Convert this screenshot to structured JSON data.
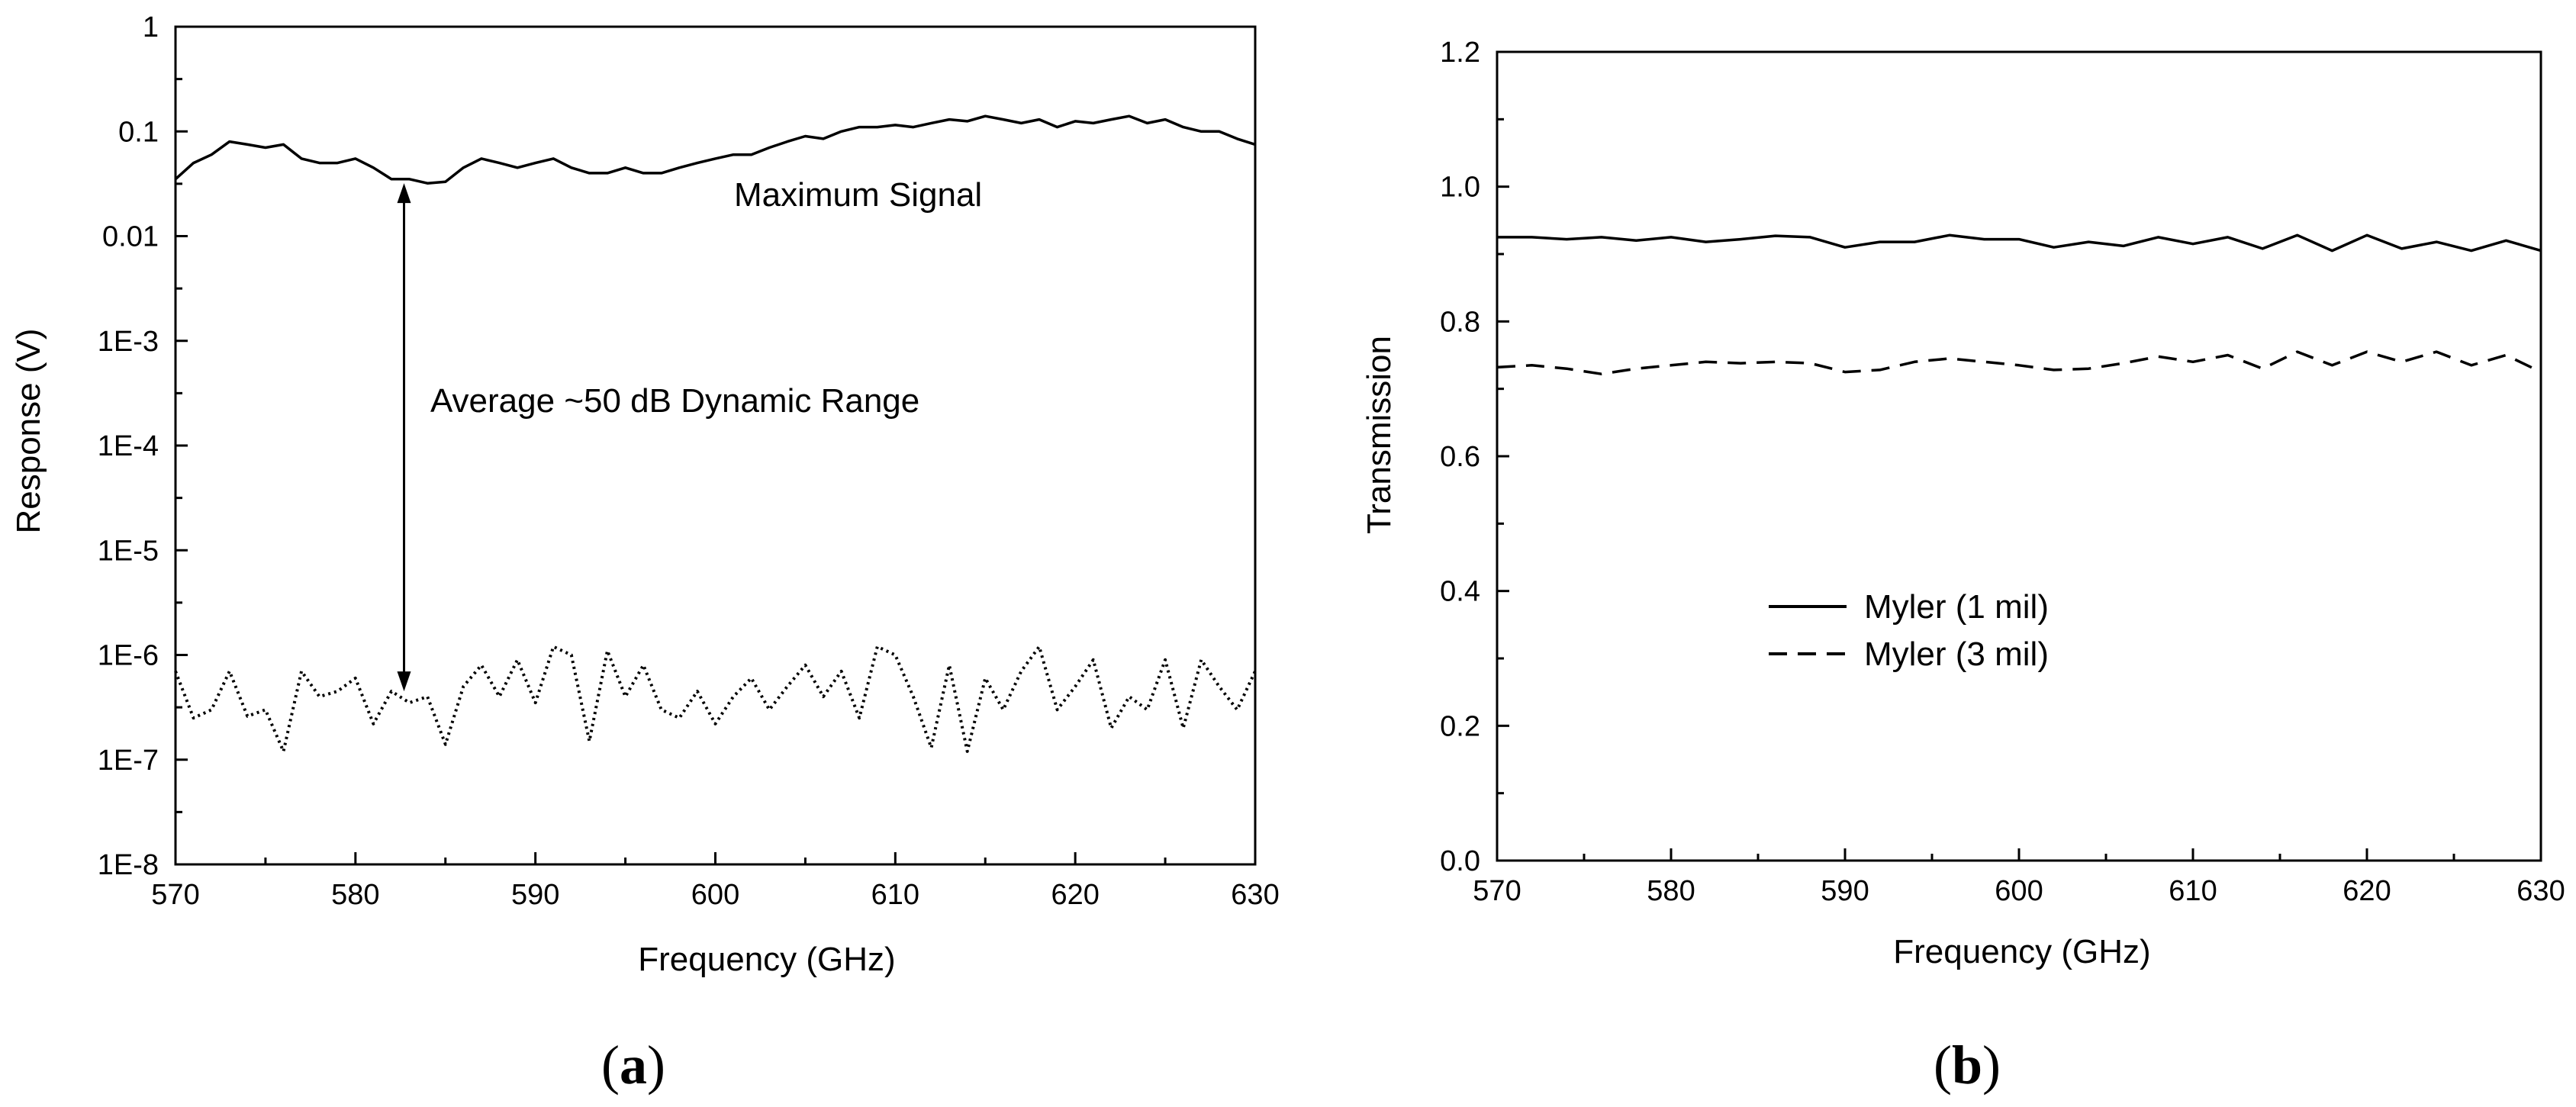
{
  "chart_data": [
    {
      "type": "line",
      "panel_label": "a",
      "xlabel": "Frequency (GHz)",
      "ylabel": "Response (V)",
      "xlim": [
        570,
        630
      ],
      "ylim": [
        1e-08,
        1
      ],
      "yscale": "log",
      "x_ticks": [
        "570",
        "580",
        "590",
        "600",
        "610",
        "620",
        "630"
      ],
      "y_ticks": [
        "1E-8",
        "1E-7",
        "1E-6",
        "1E-5",
        "1E-4",
        "1E-3",
        "0.01",
        "0.1",
        "1"
      ],
      "annotations": [
        "Maximum Signal",
        "Average ~50 dB Dynamic Range"
      ],
      "arrow": {
        "x": 582.7,
        "y_top": 0.032,
        "y_bottom": 4.5e-07
      },
      "series": [
        {
          "style": "solid",
          "x": [
            570,
            571,
            572,
            573,
            574,
            575,
            576,
            577,
            578,
            579,
            580,
            581,
            582,
            583,
            584,
            585,
            586,
            587,
            588,
            589,
            590,
            591,
            592,
            593,
            594,
            595,
            596,
            597,
            598,
            599,
            600,
            601,
            602,
            603,
            604,
            605,
            606,
            607,
            608,
            609,
            610,
            611,
            612,
            613,
            614,
            615,
            616,
            617,
            618,
            619,
            620,
            621,
            622,
            623,
            624,
            625,
            626,
            627,
            628,
            629,
            630
          ],
          "values": [
            0.035,
            0.05,
            0.06,
            0.08,
            0.075,
            0.07,
            0.075,
            0.055,
            0.05,
            0.05,
            0.055,
            0.045,
            0.035,
            0.035,
            0.032,
            0.033,
            0.045,
            0.055,
            0.05,
            0.045,
            0.05,
            0.055,
            0.045,
            0.04,
            0.04,
            0.045,
            0.04,
            0.04,
            0.045,
            0.05,
            0.055,
            0.06,
            0.06,
            0.07,
            0.08,
            0.09,
            0.085,
            0.1,
            0.11,
            0.11,
            0.115,
            0.11,
            0.12,
            0.13,
            0.125,
            0.14,
            0.13,
            0.12,
            0.13,
            0.11,
            0.125,
            0.12,
            0.13,
            0.14,
            0.12,
            0.13,
            0.11,
            0.1,
            0.1,
            0.085,
            0.075
          ]
        },
        {
          "style": "dotted",
          "x": [
            570,
            571,
            572,
            573,
            574,
            575,
            576,
            577,
            578,
            579,
            580,
            581,
            582,
            583,
            584,
            585,
            586,
            587,
            588,
            589,
            590,
            591,
            592,
            593,
            594,
            595,
            596,
            597,
            598,
            599,
            600,
            601,
            602,
            603,
            604,
            605,
            606,
            607,
            608,
            609,
            610,
            611,
            612,
            613,
            614,
            615,
            616,
            617,
            618,
            619,
            620,
            621,
            622,
            623,
            624,
            625,
            626,
            627,
            628,
            629,
            630
          ],
          "values": [
            7e-07,
            2.5e-07,
            3e-07,
            7e-07,
            2.6e-07,
            3e-07,
            1.2e-07,
            7e-07,
            4e-07,
            4.5e-07,
            6e-07,
            2.2e-07,
            4.5e-07,
            3.5e-07,
            4e-07,
            1.4e-07,
            5e-07,
            8e-07,
            4e-07,
            9e-07,
            3.5e-07,
            1.2e-06,
            1e-06,
            1.5e-07,
            1.1e-06,
            4e-07,
            8e-07,
            3e-07,
            2.5e-07,
            4.5e-07,
            2.2e-07,
            4e-07,
            6e-07,
            3e-07,
            5e-07,
            8e-07,
            4e-07,
            7e-07,
            2.5e-07,
            1.2e-06,
            1e-06,
            4e-07,
            1.3e-07,
            8e-07,
            1.2e-07,
            6e-07,
            3e-07,
            7e-07,
            1.2e-06,
            3e-07,
            5e-07,
            9e-07,
            2e-07,
            4e-07,
            3e-07,
            9e-07,
            2e-07,
            9e-07,
            5e-07,
            3e-07,
            7e-07
          ]
        }
      ]
    },
    {
      "type": "line",
      "panel_label": "b",
      "xlabel": "Frequency (GHz)",
      "ylabel": "Transmission",
      "xlim": [
        570,
        630
      ],
      "ylim": [
        0.0,
        1.2
      ],
      "x_ticks": [
        "570",
        "580",
        "590",
        "600",
        "610",
        "620",
        "630"
      ],
      "y_ticks": [
        "0.0",
        "0.2",
        "0.4",
        "0.6",
        "0.8",
        "1.0",
        "1.2"
      ],
      "legend_position": "center-left",
      "series": [
        {
          "name": "Myler (1 mil)",
          "style": "solid",
          "x": [
            570,
            572,
            574,
            576,
            578,
            580,
            582,
            584,
            586,
            588,
            590,
            592,
            594,
            596,
            598,
            600,
            602,
            604,
            606,
            608,
            610,
            612,
            614,
            616,
            618,
            620,
            622,
            624,
            626,
            628,
            630
          ],
          "values": [
            0.925,
            0.925,
            0.922,
            0.925,
            0.92,
            0.925,
            0.918,
            0.922,
            0.927,
            0.925,
            0.91,
            0.918,
            0.918,
            0.928,
            0.922,
            0.922,
            0.91,
            0.918,
            0.912,
            0.925,
            0.915,
            0.925,
            0.908,
            0.928,
            0.905,
            0.928,
            0.908,
            0.918,
            0.905,
            0.92,
            0.905
          ]
        },
        {
          "name": "Myler (3 mil)",
          "style": "dashed",
          "x": [
            570,
            572,
            574,
            576,
            578,
            580,
            582,
            584,
            586,
            588,
            590,
            592,
            594,
            596,
            598,
            600,
            602,
            604,
            606,
            608,
            610,
            612,
            614,
            616,
            618,
            620,
            622,
            624,
            626,
            628,
            630
          ],
          "values": [
            0.732,
            0.735,
            0.73,
            0.722,
            0.73,
            0.735,
            0.74,
            0.738,
            0.74,
            0.738,
            0.725,
            0.728,
            0.74,
            0.745,
            0.74,
            0.735,
            0.728,
            0.73,
            0.738,
            0.748,
            0.74,
            0.75,
            0.73,
            0.755,
            0.735,
            0.755,
            0.74,
            0.755,
            0.735,
            0.75,
            0.725
          ]
        }
      ]
    }
  ]
}
